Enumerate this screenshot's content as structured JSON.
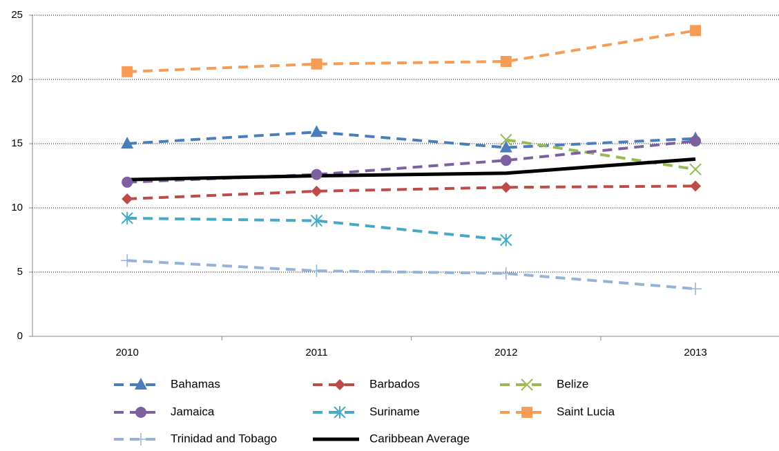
{
  "chart_data": {
    "type": "line",
    "categories": [
      "2010",
      "2011",
      "2012",
      "2013"
    ],
    "ylim": [
      0,
      25
    ],
    "yticks": [
      0,
      5,
      10,
      15,
      20,
      25
    ],
    "grid": true,
    "legend": "bottom",
    "series": [
      {
        "name": "Bahamas",
        "color": "#4a7ebb",
        "marker": "triangle",
        "dashed": true,
        "values": [
          15.0,
          15.9,
          14.7,
          15.4
        ]
      },
      {
        "name": "Barbados",
        "color": "#be4b48",
        "marker": "diamond",
        "dashed": true,
        "values": [
          10.7,
          11.3,
          11.6,
          11.7
        ]
      },
      {
        "name": "Belize",
        "color": "#98b954",
        "marker": "x",
        "dashed": true,
        "values": [
          null,
          null,
          15.3,
          13.0
        ]
      },
      {
        "name": "Jamaica",
        "color": "#7d60a0",
        "marker": "circle",
        "dashed": true,
        "values": [
          12.0,
          12.6,
          13.7,
          15.2
        ]
      },
      {
        "name": "Suriname",
        "color": "#46aac5",
        "marker": "star",
        "dashed": true,
        "values": [
          9.2,
          9.0,
          7.5,
          null
        ]
      },
      {
        "name": "Saint Lucia",
        "color": "#f59d56",
        "marker": "square",
        "dashed": true,
        "values": [
          20.6,
          21.2,
          21.4,
          23.8
        ]
      },
      {
        "name": "Trinidad and Tobago",
        "color": "#95b3d7",
        "marker": "plus",
        "dashed": true,
        "values": [
          5.9,
          5.1,
          4.9,
          3.7
        ]
      },
      {
        "name": "Caribbean Average",
        "color": "#000000",
        "marker": "none",
        "dashed": false,
        "values": [
          12.2,
          12.5,
          12.7,
          13.8
        ]
      }
    ]
  }
}
